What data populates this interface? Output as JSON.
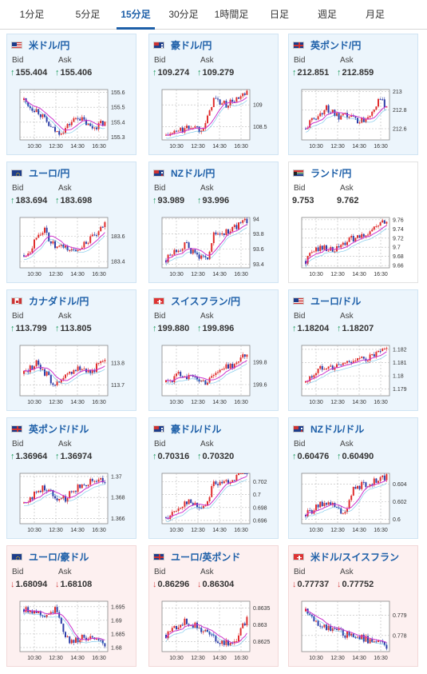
{
  "tabs": [
    {
      "label": "1分足",
      "active": false
    },
    {
      "label": "5分足",
      "active": false
    },
    {
      "label": "15分足",
      "active": true
    },
    {
      "label": "30分足",
      "active": false
    },
    {
      "label": "1時間足",
      "active": false
    },
    {
      "label": "日足",
      "active": false
    },
    {
      "label": "週足",
      "active": false
    },
    {
      "label": "月足",
      "active": false
    }
  ],
  "colors": {
    "up": "#1a9a5a",
    "down": "#d64545",
    "accent": "#1d5fa8",
    "bull": "#e02d2d",
    "bear": "#2e3ea8",
    "ma": "#cc33cc",
    "cyan": "#33aadd"
  },
  "labels": {
    "bid": "Bid",
    "ask": "Ask"
  },
  "x_ticks": [
    "10:30",
    "12:30",
    "14:30",
    "16:30"
  ],
  "cards": [
    {
      "name": "米ドル/円",
      "flag": "us",
      "dir": "up",
      "bid": "155.404",
      "ask": "155.406",
      "style": "blue",
      "chart_data": {
        "type": "candlestick",
        "yticks": [
          "155.6",
          "155.5",
          "155.4",
          "155.3"
        ],
        "ylim": [
          155.28,
          155.62
        ],
        "trend": [
          155.55,
          155.5,
          155.48,
          155.42,
          155.36,
          155.33,
          155.35,
          155.4,
          155.44,
          155.4,
          155.36,
          155.38,
          155.4
        ]
      }
    },
    {
      "name": "豪ドル/円",
      "flag": "au",
      "dir": "up",
      "bid": "109.274",
      "ask": "109.279",
      "style": "blue",
      "chart_data": {
        "type": "candlestick",
        "yticks": [
          "109",
          "108.5"
        ],
        "ylim": [
          108.2,
          109.35
        ],
        "trend": [
          108.3,
          108.35,
          108.42,
          108.45,
          108.52,
          108.45,
          108.6,
          109.15,
          109.05,
          109.0,
          109.1,
          109.15,
          109.25
        ]
      }
    },
    {
      "name": "英ポンド/円",
      "flag": "uk",
      "dir": "up",
      "bid": "212.851",
      "ask": "212.859",
      "style": "blue",
      "chart_data": {
        "type": "candlestick",
        "yticks": [
          "213",
          "212.8",
          "212.6"
        ],
        "ylim": [
          212.48,
          213.02
        ],
        "trend": [
          212.6,
          212.7,
          212.75,
          212.82,
          212.78,
          212.7,
          212.74,
          212.72,
          212.68,
          212.72,
          212.82,
          212.9,
          212.85
        ]
      }
    },
    {
      "name": "ユーロ/円",
      "flag": "eu",
      "dir": "up",
      "bid": "183.694",
      "ask": "183.698",
      "style": "blue",
      "chart_data": {
        "type": "candlestick",
        "yticks": [
          "183.6",
          "183.4"
        ],
        "ylim": [
          183.35,
          183.75
        ],
        "trend": [
          183.45,
          183.5,
          183.62,
          183.65,
          183.55,
          183.5,
          183.52,
          183.48,
          183.5,
          183.55,
          183.58,
          183.62,
          183.7
        ]
      }
    },
    {
      "name": "NZドル/円",
      "flag": "nz",
      "dir": "up",
      "bid": "93.989",
      "ask": "93.996",
      "style": "blue",
      "chart_data": {
        "type": "candlestick",
        "yticks": [
          "94",
          "93.8",
          "93.6",
          "93.4"
        ],
        "ylim": [
          93.35,
          94.02
        ],
        "trend": [
          93.45,
          93.55,
          93.62,
          93.65,
          93.55,
          93.5,
          93.45,
          93.78,
          93.8,
          93.82,
          93.88,
          93.92,
          93.98
        ]
      }
    },
    {
      "name": "ランド/円",
      "flag": "za",
      "dir": "none",
      "bid": "9.753",
      "ask": "9.762",
      "style": "plain",
      "chart_data": {
        "type": "candlestick",
        "yticks": [
          "9.76",
          "9.74",
          "9.72",
          "9.7",
          "9.68",
          "9.66"
        ],
        "ylim": [
          9.655,
          9.765
        ],
        "trend": [
          9.67,
          9.69,
          9.7,
          9.7,
          9.69,
          9.7,
          9.71,
          9.72,
          9.72,
          9.73,
          9.74,
          9.75,
          9.755
        ]
      }
    },
    {
      "name": "カナダドル/円",
      "flag": "ca",
      "dir": "up",
      "bid": "113.799",
      "ask": "113.805",
      "style": "blue",
      "chart_data": {
        "type": "candlestick",
        "yticks": [
          "113.8",
          "113.7"
        ],
        "ylim": [
          113.65,
          113.88
        ],
        "trend": [
          113.75,
          113.78,
          113.8,
          113.76,
          113.72,
          113.7,
          113.73,
          113.76,
          113.78,
          113.77,
          113.76,
          113.79,
          113.8
        ]
      }
    },
    {
      "name": "スイスフラン/円",
      "flag": "ch",
      "dir": "up",
      "bid": "199.880",
      "ask": "199.896",
      "style": "blue",
      "chart_data": {
        "type": "candlestick",
        "yticks": [
          "199.8",
          "199.6"
        ],
        "ylim": [
          199.5,
          199.95
        ],
        "trend": [
          199.62,
          199.65,
          199.7,
          199.68,
          199.66,
          199.64,
          199.62,
          199.7,
          199.72,
          199.76,
          199.78,
          199.82,
          199.88
        ]
      }
    },
    {
      "name": "ユーロ/ドル",
      "flag": "us",
      "dir": "up",
      "bid": "1.18204",
      "ask": "1.18207",
      "style": "blue",
      "chart_data": {
        "type": "candlestick",
        "yticks": [
          "1.182",
          "1.181",
          "1.18",
          "1.179"
        ],
        "ylim": [
          1.1785,
          1.1823
        ],
        "trend": [
          1.1795,
          1.18,
          1.1805,
          1.1808,
          1.1806,
          1.1808,
          1.181,
          1.1812,
          1.1812,
          1.1813,
          1.1815,
          1.1817,
          1.182
        ]
      }
    },
    {
      "name": "英ポンド/ドル",
      "flag": "uk",
      "dir": "up",
      "bid": "1.36964",
      "ask": "1.36974",
      "style": "blue",
      "chart_data": {
        "type": "candlestick",
        "yticks": [
          "1.37",
          "1.368",
          "1.366"
        ],
        "ylim": [
          1.3655,
          1.3703
        ],
        "trend": [
          1.3675,
          1.368,
          1.3685,
          1.369,
          1.3685,
          1.368,
          1.3678,
          1.3685,
          1.369,
          1.3692,
          1.3698,
          1.3695,
          1.3697
        ]
      }
    },
    {
      "name": "豪ドル/ドル",
      "flag": "au",
      "dir": "up",
      "bid": "0.70316",
      "ask": "0.70320",
      "style": "blue",
      "chart_data": {
        "type": "candlestick",
        "yticks": [
          "0.702",
          "0.7",
          "0.698",
          "0.696"
        ],
        "ylim": [
          0.6955,
          0.7033
        ],
        "trend": [
          0.6965,
          0.697,
          0.698,
          0.699,
          0.6985,
          0.698,
          0.6985,
          0.702,
          0.7015,
          0.702,
          0.7025,
          0.703,
          0.7032
        ]
      }
    },
    {
      "name": "NZドル/ドル",
      "flag": "nz",
      "dir": "up",
      "bid": "0.60476",
      "ask": "0.60490",
      "style": "blue",
      "chart_data": {
        "type": "candlestick",
        "yticks": [
          "0.604",
          "0.602",
          "0.6"
        ],
        "ylim": [
          0.5995,
          0.6052
        ],
        "trend": [
          0.6005,
          0.601,
          0.6015,
          0.602,
          0.6015,
          0.601,
          0.6005,
          0.6035,
          0.6038,
          0.604,
          0.6042,
          0.6045,
          0.6048
        ]
      }
    },
    {
      "name": "ユーロ/豪ドル",
      "flag": "eu",
      "dir": "down",
      "bid": "1.68094",
      "ask": "1.68108",
      "style": "down",
      "chart_data": {
        "type": "candlestick",
        "yticks": [
          "1.695",
          "1.69",
          "1.685",
          "1.68"
        ],
        "ylim": [
          1.6785,
          1.697
        ],
        "trend": [
          1.694,
          1.694,
          1.693,
          1.692,
          1.693,
          1.694,
          1.685,
          1.682,
          1.683,
          1.684,
          1.683,
          1.682,
          1.681
        ]
      }
    },
    {
      "name": "ユーロ/英ポンド",
      "flag": "uk",
      "dir": "down",
      "bid": "0.86296",
      "ask": "0.86304",
      "style": "down",
      "chart_data": {
        "type": "candlestick",
        "yticks": [
          "0.8635",
          "0.863",
          "0.8625"
        ],
        "ylim": [
          0.8622,
          0.8637
        ],
        "trend": [
          0.8627,
          0.8629,
          0.863,
          0.8631,
          0.863,
          0.8629,
          0.8628,
          0.8626,
          0.8625,
          0.8625,
          0.8624,
          0.8628,
          0.8632
        ]
      }
    },
    {
      "name": "米ドル/スイスフラン",
      "flag": "ch",
      "dir": "down",
      "bid": "0.77737",
      "ask": "0.77752",
      "style": "down",
      "chart_data": {
        "type": "candlestick",
        "yticks": [
          "0.779",
          "0.778"
        ],
        "ylim": [
          0.7772,
          0.7797
        ],
        "trend": [
          0.7792,
          0.7788,
          0.7786,
          0.7784,
          0.7783,
          0.7782,
          0.778,
          0.7781,
          0.7779,
          0.7778,
          0.7777,
          0.7776,
          0.7775
        ]
      }
    }
  ]
}
